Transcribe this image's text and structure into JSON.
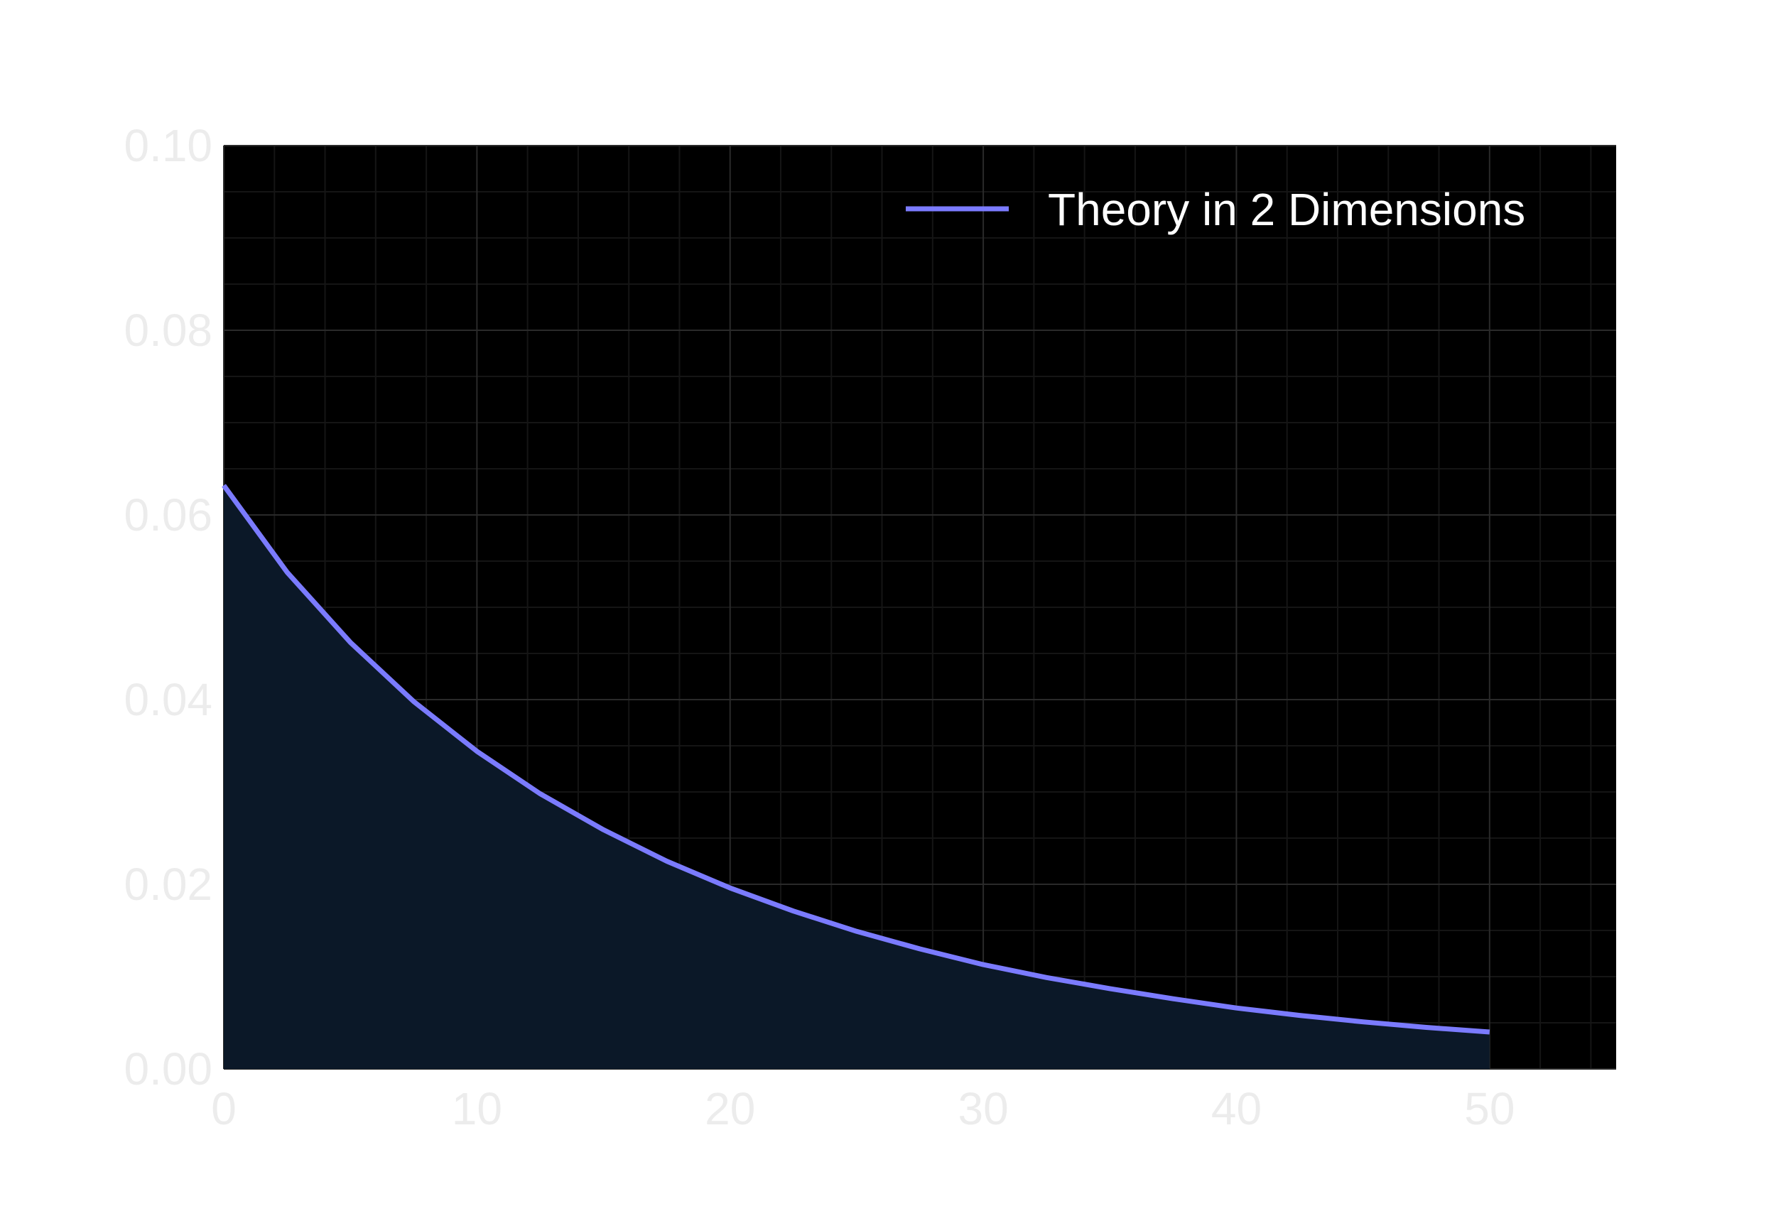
{
  "chart_data": {
    "type": "area",
    "title": "",
    "xlabel": "",
    "ylabel": "",
    "xlim": [
      0,
      55
    ],
    "ylim": [
      0,
      0.1
    ],
    "x_ticks": [
      "0",
      "10",
      "20",
      "30",
      "40",
      "50"
    ],
    "y_ticks": [
      "0.00",
      "0.02",
      "0.04",
      "0.06",
      "0.08",
      "0.10"
    ],
    "grid": true,
    "minor_grid": true,
    "legend_position": "top-right",
    "series": [
      {
        "name": "Theory in 2 Dimensions",
        "color": "#7b7bff",
        "fill_color": "#0b1828",
        "x": [
          0,
          2.5,
          5,
          7.5,
          10,
          12.5,
          15,
          17.5,
          20,
          22.5,
          25,
          27.5,
          30,
          32.5,
          35,
          37.5,
          40,
          42.5,
          45,
          47.5,
          50
        ],
        "y": [
          0.0632,
          0.0538,
          0.0462,
          0.0398,
          0.0344,
          0.0298,
          0.0259,
          0.0225,
          0.0196,
          0.0171,
          0.0149,
          0.013,
          0.0113,
          0.0099,
          0.0087,
          0.0076,
          0.0066,
          0.0058,
          0.0051,
          0.0045,
          0.004
        ]
      }
    ]
  },
  "colors": {
    "plot_background": "#000000",
    "page_background": "#ffffff",
    "tick_label": "#ececec",
    "grid_major": "#2a2a2a",
    "grid_minor": "#151515",
    "legend_text": "#ffffff"
  }
}
